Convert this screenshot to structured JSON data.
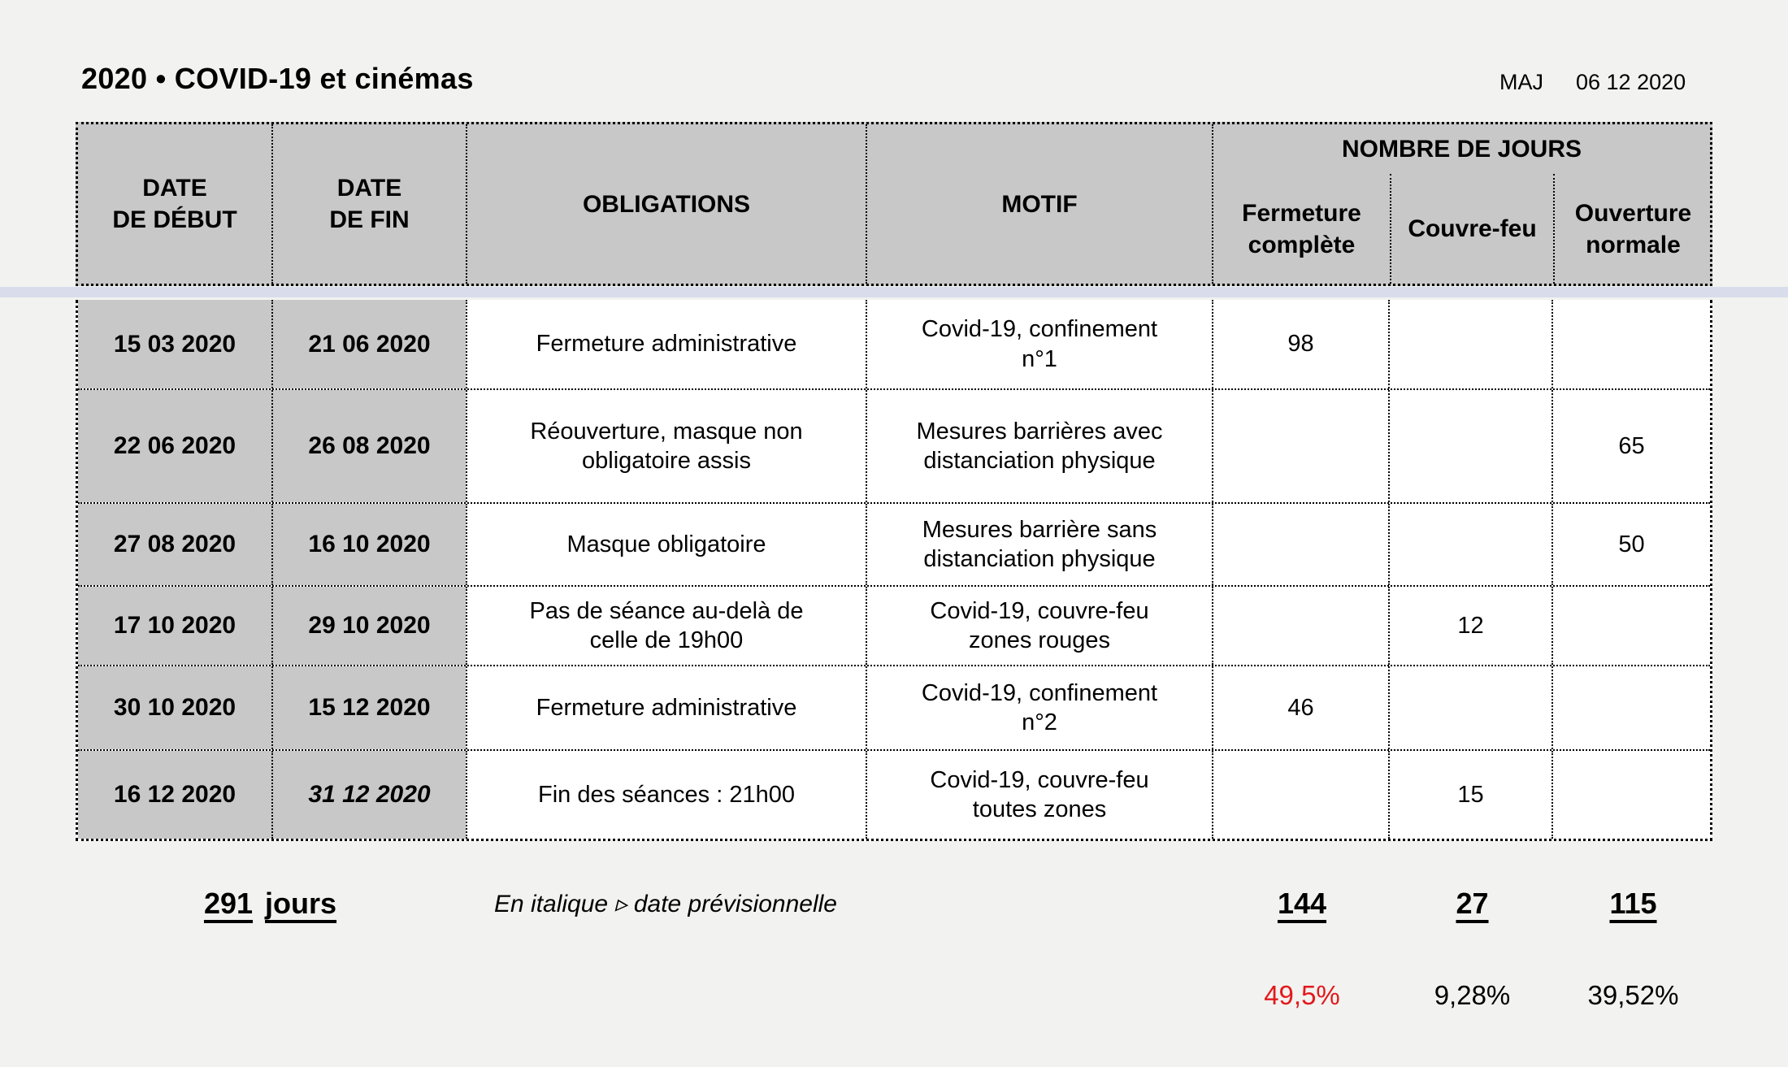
{
  "page": {
    "title": "2020 • COVID-19 et cinémas",
    "updated_label": "MAJ",
    "updated_date": "06 12 2020",
    "colors": {
      "header_gray": "#c8c8c8",
      "separator_band": "#d9ddeb",
      "alert_red": "#e2191c"
    }
  },
  "table": {
    "headers": {
      "date_debut": "DATE\nDE DÉBUT",
      "date_fin": "DATE\nDE FIN",
      "obligations": "OBLIGATIONS",
      "motif": "MOTIF",
      "nombre_de_jours": "NOMBRE DE JOURS",
      "fermeture_complete": "Fermeture\ncomplète",
      "couvre_feu": "Couvre-feu",
      "ouverture_normale": "Ouverture\nnormale"
    },
    "rows": [
      {
        "debut": "15 03 2020",
        "fin": "21 06 2020",
        "obligations": "Fermeture administrative",
        "motif": "Covid-19, confinement\nn°1",
        "fermeture": "98",
        "couvre_feu": "",
        "ouverture": ""
      },
      {
        "debut": "22 06 2020",
        "fin": "26 08 2020",
        "obligations": "Réouverture, masque non\nobligatoire assis",
        "motif": "Mesures barrières avec\ndistanciation physique",
        "fermeture": "",
        "couvre_feu": "",
        "ouverture": "65"
      },
      {
        "debut": "27 08 2020",
        "fin": "16 10 2020",
        "obligations": "Masque obligatoire",
        "motif": "Mesures barrière sans\ndistanciation physique",
        "fermeture": "",
        "couvre_feu": "",
        "ouverture": "50"
      },
      {
        "debut": "17 10 2020",
        "fin": "29 10 2020",
        "obligations": "Pas de séance au-delà de\ncelle de 19h00",
        "motif": "Covid-19, couvre-feu\nzones rouges",
        "fermeture": "",
        "couvre_feu": "12",
        "ouverture": ""
      },
      {
        "debut": "30 10 2020",
        "fin": "15 12 2020",
        "obligations": "Fermeture administrative",
        "motif": "Covid-19, confinement\nn°2",
        "fermeture": "46",
        "couvre_feu": "",
        "ouverture": ""
      },
      {
        "debut": "16 12 2020",
        "fin": "31 12 2020",
        "obligations": "Fin des séances : 21h00",
        "motif": "Covid-19, couvre-feu\ntoutes zones",
        "fermeture": "",
        "couvre_feu": "15",
        "ouverture": ""
      }
    ],
    "summary": {
      "total_days": "291",
      "total_days_unit": "jours",
      "legend_note": "En italique ▹ date prévisionnelle",
      "fermeture_total_days": "144",
      "couvre_feu_total_days": "27",
      "ouverture_total_days": "115",
      "fermeture_pct": "49,5%",
      "couvre_feu_pct": "9,28%",
      "ouverture_pct": "39,52%"
    }
  }
}
